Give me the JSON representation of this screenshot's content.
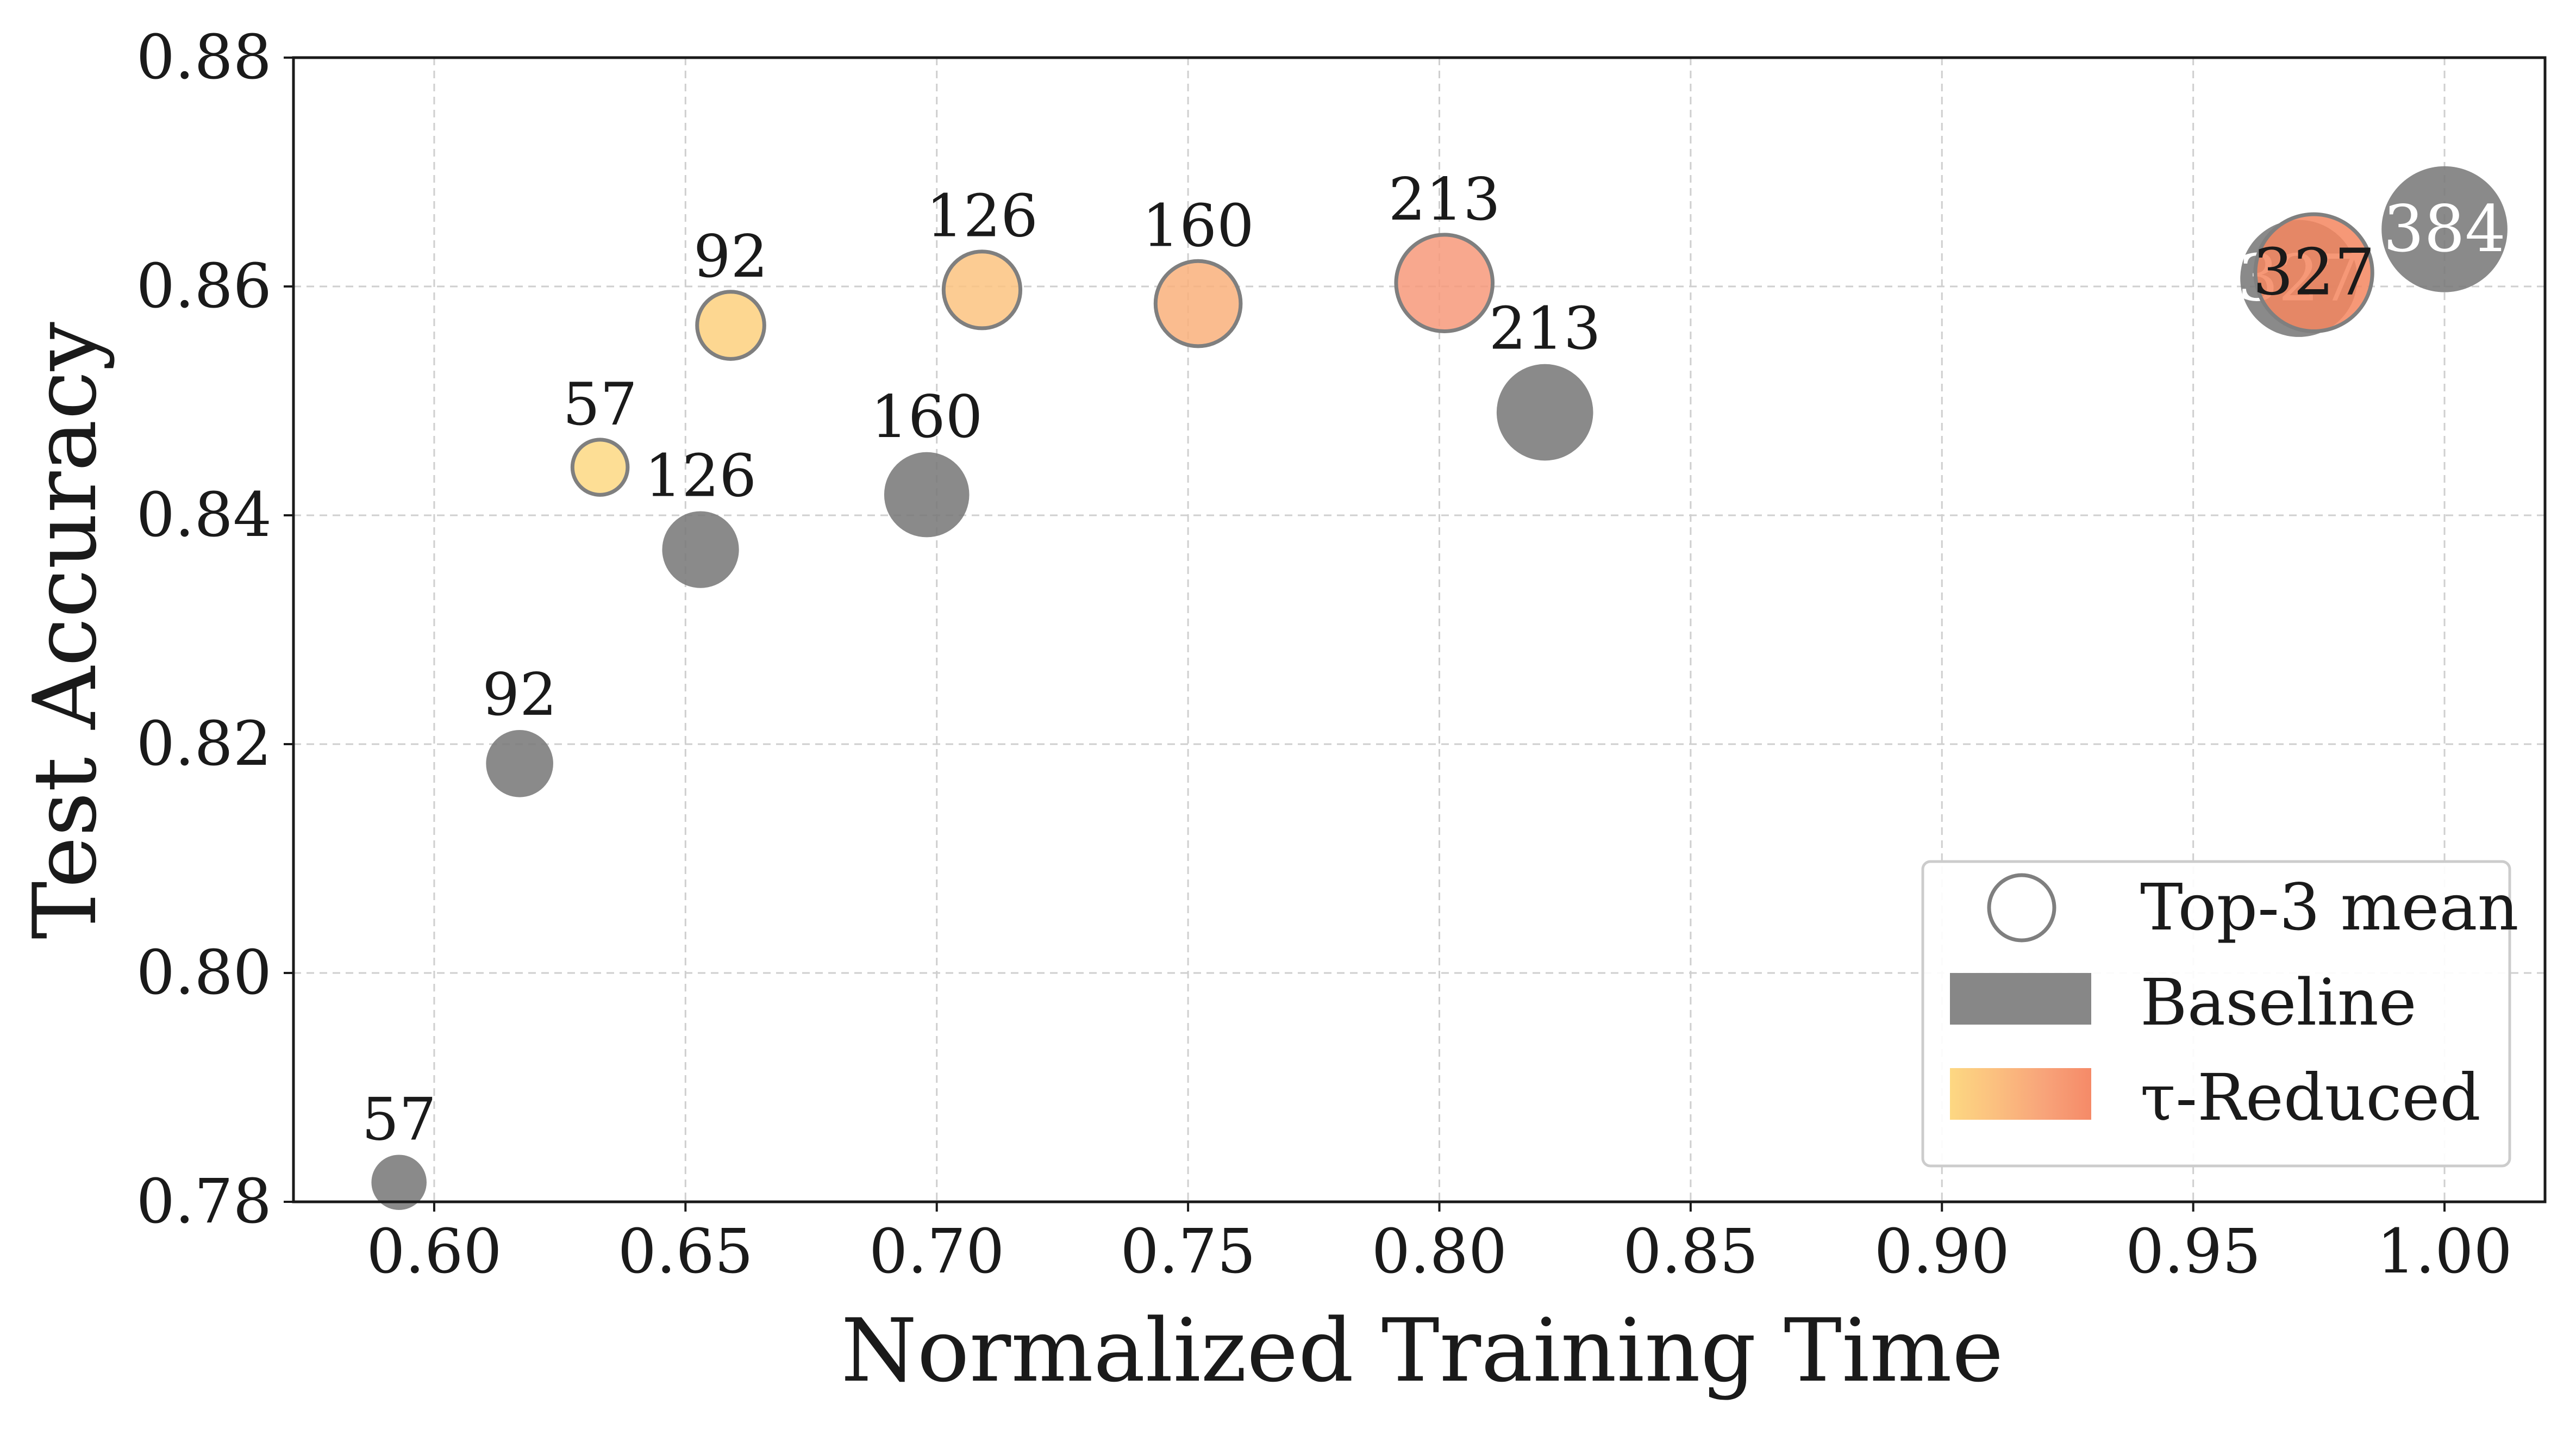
{
  "chart_data": {
    "type": "scatter",
    "title": "",
    "xlabel": "Normalized Training Time",
    "ylabel": "Test Accuracy",
    "xlim": [
      0.572,
      1.02
    ],
    "ylim": [
      0.78,
      0.88
    ],
    "xticks": [
      "0.60",
      "0.65",
      "0.70",
      "0.75",
      "0.80",
      "0.85",
      "0.90",
      "0.95",
      "1.00"
    ],
    "yticks": [
      "0.78",
      "0.80",
      "0.82",
      "0.84",
      "0.86",
      "0.88"
    ],
    "grid": true,
    "legend_position": "bottom-right",
    "legend": [
      {
        "label": "Top-3 mean",
        "marker": "hollow-circle",
        "color": "#7f7f7f"
      },
      {
        "label": "Baseline",
        "marker": "gray-patch",
        "color": "#7a7a7a"
      },
      {
        "label": "τ-Reduced",
        "marker": "gradient-patch",
        "colors": [
          "#fdd882",
          "#fbbf7f",
          "#f8a47a",
          "#f58a68"
        ]
      }
    ],
    "series": [
      {
        "name": "Baseline",
        "color": "#7a7a7a",
        "points": [
          {
            "x": 0.593,
            "y": 0.7817,
            "label": "57"
          },
          {
            "x": 0.617,
            "y": 0.8183,
            "label": "92"
          },
          {
            "x": 0.653,
            "y": 0.837,
            "label": "126"
          },
          {
            "x": 0.698,
            "y": 0.8418,
            "label": "160"
          },
          {
            "x": 0.821,
            "y": 0.849,
            "label": "213"
          },
          {
            "x": 0.971,
            "y": 0.8607,
            "label": "327"
          },
          {
            "x": 1.0,
            "y": 0.865,
            "label": "384"
          }
        ]
      },
      {
        "name": "τ-Reduced",
        "points": [
          {
            "x": 0.633,
            "y": 0.8442,
            "label": "57",
            "color": "#fdd882"
          },
          {
            "x": 0.659,
            "y": 0.8566,
            "label": "92",
            "color": "#fdd07e"
          },
          {
            "x": 0.709,
            "y": 0.8597,
            "label": "126",
            "color": "#fcc380"
          },
          {
            "x": 0.752,
            "y": 0.8585,
            "label": "160",
            "color": "#f9b07b"
          },
          {
            "x": 0.801,
            "y": 0.8603,
            "label": "213",
            "color": "#f7997a"
          },
          {
            "x": 0.974,
            "y": 0.8612,
            "label": "327",
            "color": "#f5865f"
          }
        ]
      }
    ]
  }
}
